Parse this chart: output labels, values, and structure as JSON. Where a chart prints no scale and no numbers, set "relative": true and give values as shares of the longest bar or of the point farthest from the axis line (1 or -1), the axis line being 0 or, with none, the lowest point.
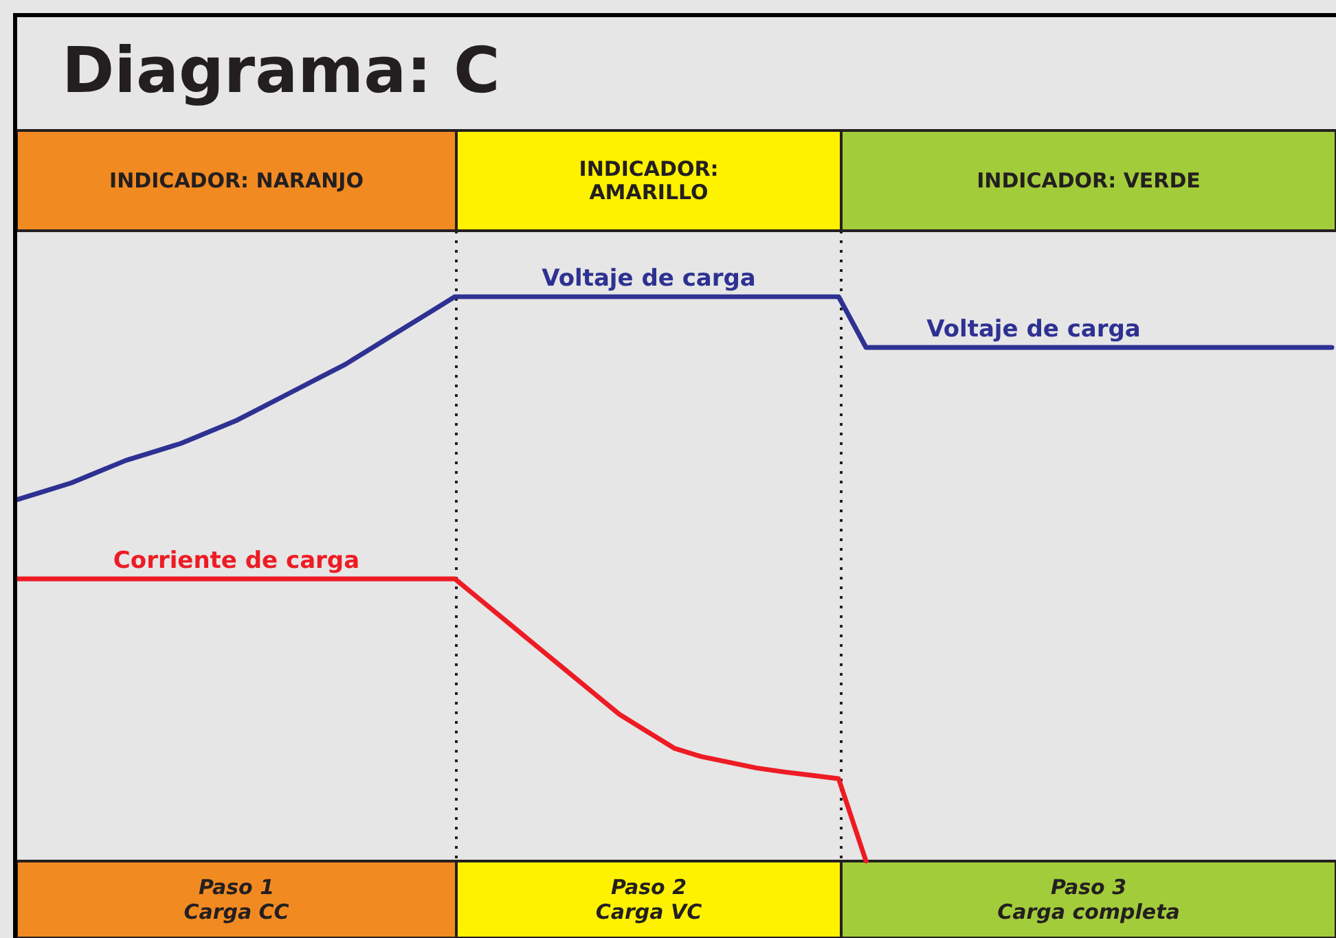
{
  "chart_data": {
    "type": "line",
    "title": "Diagrama: C",
    "relative": true,
    "grid": false,
    "marker": "none",
    "line_style": "solid",
    "categories": [
      null,
      null,
      null,
      null,
      null,
      null,
      null,
      null,
      null,
      null,
      null,
      null,
      null,
      null,
      null,
      null,
      null,
      null,
      null,
      null,
      null,
      null,
      null,
      null,
      null,
      null,
      null,
      null,
      null,
      null,
      null,
      null,
      null,
      null,
      null,
      null,
      null,
      null,
      null,
      null,
      null,
      null,
      null,
      null,
      null,
      null,
      null,
      null,
      null
    ],
    "series": [
      {
        "color": "#2e3192",
        "values": [
          0.64,
          0.655,
          0.67,
          0.69,
          0.71,
          0.725,
          0.74,
          0.76,
          0.78,
          0.805,
          0.83,
          0.855,
          0.88,
          0.91,
          0.94,
          0.97,
          1,
          1,
          1,
          1,
          1,
          1,
          1,
          1,
          1,
          1,
          1,
          1,
          1,
          1,
          1,
          0.91,
          0.91,
          0.91,
          0.91,
          0.91,
          0.91,
          0.91,
          0.91,
          0.91,
          0.91,
          0.91,
          0.91,
          0.91,
          0.91,
          0.91,
          0.91,
          0.91,
          0.91
        ]
      },
      {
        "color": "#ed1c24",
        "values": [
          0.5,
          0.5,
          0.5,
          0.5,
          0.5,
          0.5,
          0.5,
          0.5,
          0.5,
          0.5,
          0.5,
          0.5,
          0.5,
          0.5,
          0.5,
          0.5,
          0.5,
          0.46,
          0.42,
          0.38,
          0.34,
          0.3,
          0.26,
          0.23,
          0.2,
          0.185,
          0.175,
          0.165,
          0.158,
          0.152,
          0.146,
          0,
          null,
          null,
          null,
          null,
          null,
          null,
          null,
          null,
          null,
          null,
          null,
          null,
          null,
          null,
          null,
          null,
          null
        ]
      }
    ],
    "annotations": [
      "INDICADOR: NARANJO",
      "INDICADOR:\nAMARILLO",
      "INDICADOR: VERDE",
      "Paso 1\nCarga CC",
      "Paso 2\nCarga VC",
      "Paso 3\nCarga completa",
      "Voltaje de carga",
      "Voltaje de carga",
      "Corriente de carga"
    ]
  }
}
